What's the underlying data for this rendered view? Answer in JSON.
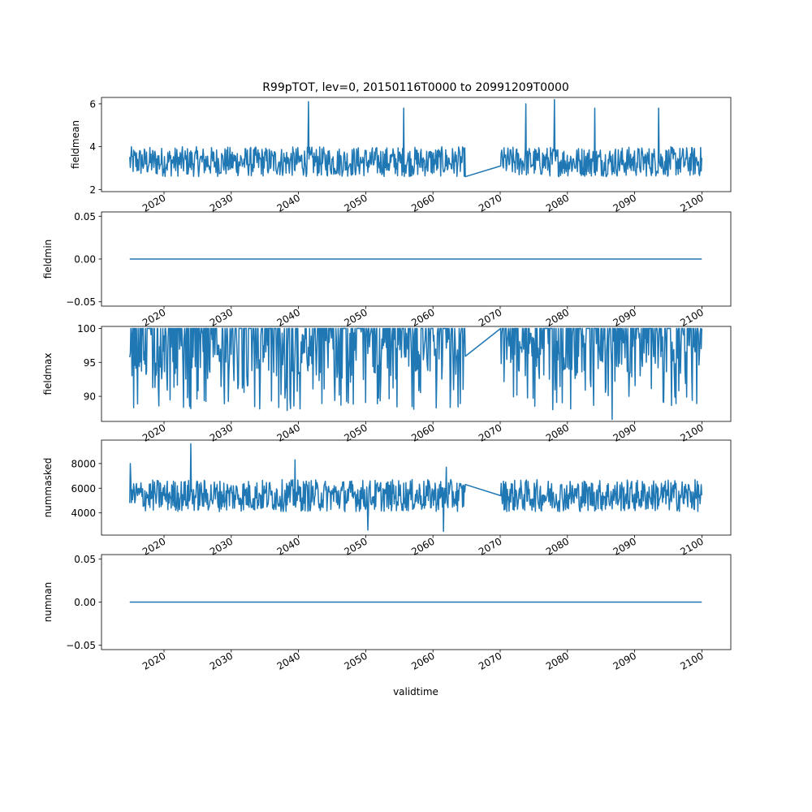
{
  "title": "R99pTOT, lev=0, 20150116T0000 to 20991209T0000",
  "line_color": "#1f77b4",
  "chart_data": {
    "type": "line",
    "title": "R99pTOT, lev=0, 20150116T0000 to 20991209T0000",
    "xlabel": "validtime",
    "x_range": [
      2014.9,
      2100.0
    ],
    "xlim": [
      2010.7,
      2104.3
    ],
    "x_ticks": [
      2020,
      2030,
      2040,
      2050,
      2060,
      2070,
      2080,
      2090,
      2100
    ],
    "x_tick_labels": [
      "2020",
      "2030",
      "2040",
      "2050",
      "2060",
      "2070",
      "2080",
      "2090",
      "2100"
    ],
    "gap": [
      2064.9,
      2070.0
    ],
    "grid": false,
    "panels": [
      {
        "ylabel": "fieldmean",
        "ylim": [
          1.9,
          6.3
        ],
        "y_ticks": [
          2,
          4,
          6
        ],
        "y_tick_labels": [
          "2",
          "4",
          "6"
        ],
        "kind": "noise",
        "base": 3.3,
        "amp": 0.7,
        "clip": [
          2.2,
          4.6
        ],
        "spikes": [
          [
            2041.5,
            6.1
          ],
          [
            2055.7,
            5.8
          ],
          [
            2073.8,
            6.0
          ],
          [
            2078.1,
            6.2
          ],
          [
            2084.1,
            5.8
          ],
          [
            2093.6,
            5.8
          ]
        ],
        "gap_values": [
          2.6,
          3.1
        ]
      },
      {
        "ylabel": "fieldmin",
        "ylim": [
          -0.055,
          0.055
        ],
        "y_ticks": [
          -0.05,
          0.0,
          0.05
        ],
        "y_tick_labels": [
          "−0.05",
          "0.00",
          "0.05"
        ],
        "kind": "const",
        "value": 0.0
      },
      {
        "ylabel": "fieldmax",
        "ylim": [
          86.3,
          100.3
        ],
        "y_ticks": [
          90,
          95,
          100
        ],
        "y_tick_labels": [
          "90",
          "95",
          "100"
        ],
        "kind": "dips",
        "value": 100,
        "dip_min": 88,
        "dip_max": 99.5,
        "spikes": [
          [
            2086.7,
            86.6
          ],
          [
            2038.3,
            87.9
          ],
          [
            2029.0,
            88.9
          ],
          [
            2046.3,
            88.7
          ]
        ],
        "gap_values": [
          95.9,
          100
        ]
      },
      {
        "ylabel": "nummasked",
        "ylim": [
          2200,
          9900
        ],
        "y_ticks": [
          4000,
          6000,
          8000
        ],
        "y_tick_labels": [
          "4000",
          "6000",
          "8000"
        ],
        "kind": "noise",
        "base": 5400,
        "amp": 1300,
        "clip": [
          3200,
          7400
        ],
        "spikes": [
          [
            2015.0,
            8000
          ],
          [
            2024.0,
            9600
          ],
          [
            2039.5,
            8300
          ],
          [
            2050.3,
            2600
          ],
          [
            2061.6,
            2500
          ],
          [
            2062.0,
            7700
          ]
        ],
        "gap_values": [
          6300,
          5400
        ]
      },
      {
        "ylabel": "numnan",
        "ylim": [
          -0.055,
          0.055
        ],
        "y_ticks": [
          -0.05,
          0.0,
          0.05
        ],
        "y_tick_labels": [
          "−0.05",
          "0.00",
          "0.05"
        ],
        "kind": "const",
        "value": 0.0
      }
    ]
  }
}
